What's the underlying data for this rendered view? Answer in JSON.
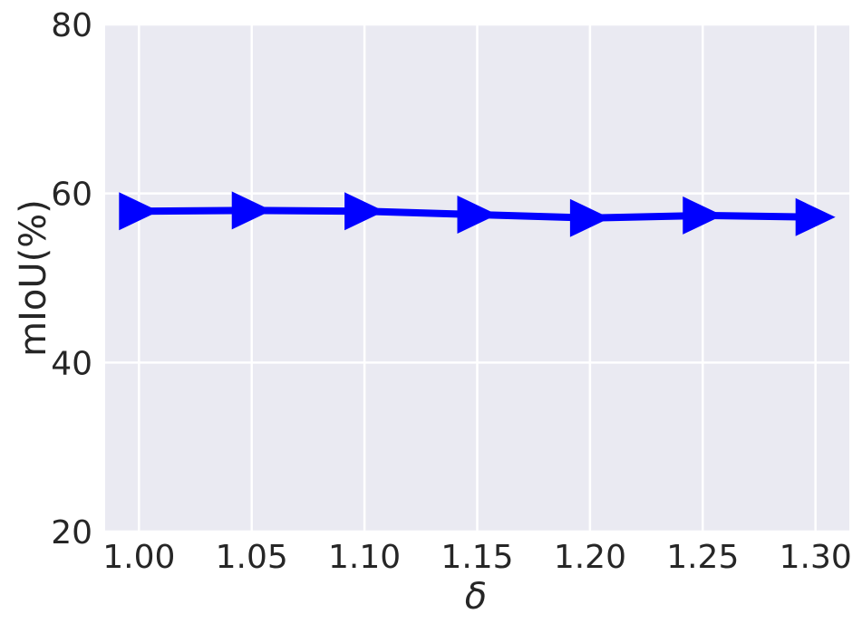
{
  "chart_data": {
    "type": "line",
    "x_label": "δ",
    "y_label": "mIoU(%)",
    "x": [
      1.0,
      1.05,
      1.1,
      1.15,
      1.2,
      1.25,
      1.3
    ],
    "series": [
      {
        "color": "#0000ff",
        "marker": "triangle-right",
        "values": [
          57.9,
          58.0,
          57.9,
          57.5,
          57.1,
          57.4,
          57.2
        ]
      }
    ],
    "xlim": [
      0.985,
      1.315
    ],
    "ylim": [
      20,
      80
    ],
    "xticks": [
      {
        "value": 1.0,
        "label": "1.00"
      },
      {
        "value": 1.05,
        "label": "1.05"
      },
      {
        "value": 1.1,
        "label": "1.10"
      },
      {
        "value": 1.15,
        "label": "1.15"
      },
      {
        "value": 1.2,
        "label": "1.20"
      },
      {
        "value": 1.25,
        "label": "1.25"
      },
      {
        "value": 1.3,
        "label": "1.30"
      }
    ],
    "yticks": [
      20,
      40,
      60,
      80
    ],
    "grid": true
  }
}
